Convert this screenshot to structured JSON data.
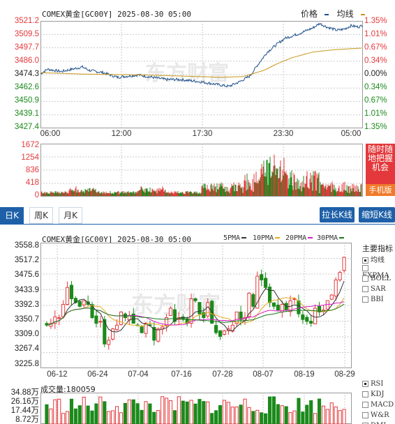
{
  "intraday": {
    "title": "COMEX黄金[GC00Y] 2025-08-30 05:00",
    "legend_price": "价格",
    "legend_avg": "均线",
    "y_left": [
      "3521.2",
      "3509.5",
      "3497.7",
      "3486.0",
      "3474.3",
      "3462.6",
      "3450.9",
      "3439.1",
      "3427.4"
    ],
    "y_right": [
      "1.35%",
      "1.01%",
      "0.67%",
      "0.34%",
      "0.00%",
      "0.34%",
      "0.67%",
      "1.01%",
      "1.35%"
    ],
    "x_labels": [
      "06:00",
      "12:00",
      "17:30",
      "23:30",
      "05:00"
    ],
    "vol_ticks": [
      "1672",
      "1254",
      "836",
      "418",
      "0"
    ],
    "side_ad": "随时随地把握机会",
    "side_btn": "手机版",
    "colors": {
      "price": "#1e4f8a",
      "avg": "#c9961a",
      "up": "#e4393c",
      "down": "#1b8a1b"
    },
    "watermark": "东方财富"
  },
  "tabs": {
    "day": "日K",
    "week": "周K",
    "month": "月K",
    "stretch_btn": "拉长K线",
    "shrink_btn": "缩短K线"
  },
  "kline": {
    "title": "COMEX黄金[GC00Y] 2025-08-30 05:00",
    "ma_labels": [
      "5PMA",
      "10PMA",
      "20PMA",
      "30PMA"
    ],
    "ma_colors": [
      "#333333",
      "#e6a817",
      "#d81ec9",
      "#1a7a1a"
    ],
    "y_labels": [
      "3558.8",
      "3517.2",
      "3475.6",
      "3433.9",
      "3392.3",
      "3350.7",
      "3309.0",
      "3267.4",
      "3225.8"
    ],
    "x_labels": [
      "06-12",
      "06-24",
      "07-04",
      "07-16",
      "07-28",
      "08-07",
      "08-19",
      "08-29"
    ],
    "indicators_title": "主要指标",
    "indicators": [
      {
        "label": "均线",
        "on": true
      },
      {
        "label": "EXPMA",
        "on": false
      },
      {
        "label": "BOLL",
        "on": false
      },
      {
        "label": "SAR",
        "on": false
      },
      {
        "label": "BBI",
        "on": false
      }
    ],
    "vol_title": "成交量:180059",
    "vol_labels": [
      "34.88万",
      "26.16万",
      "17.44万",
      "8.72万"
    ],
    "sub_indicators": [
      {
        "label": "RSI",
        "on": true
      },
      {
        "label": "KDJ",
        "on": false
      },
      {
        "label": "MACD",
        "on": false
      },
      {
        "label": "W&R",
        "on": false
      },
      {
        "label": "DMI",
        "on": false
      }
    ]
  },
  "chart_data": [
    {
      "type": "line",
      "title": "COMEX黄金[GC00Y] 2025-08-30 05:00",
      "x": [
        "06:00",
        "12:00",
        "17:30",
        "23:30",
        "05:00"
      ],
      "ylim": [
        3427.4,
        3521.2
      ],
      "series": [
        {
          "name": "价格",
          "values": [
            3478,
            3475,
            3463,
            3511,
            3516
          ]
        },
        {
          "name": "均线",
          "values": [
            3474,
            3473,
            3470,
            3491,
            3500
          ]
        }
      ]
    },
    {
      "type": "bar",
      "categories": [
        "06-12",
        "06-24",
        "07-04",
        "07-16",
        "07-28",
        "08-07",
        "08-19",
        "08-29"
      ],
      "ylim": [
        3225.8,
        3558.8
      ]
    }
  ]
}
